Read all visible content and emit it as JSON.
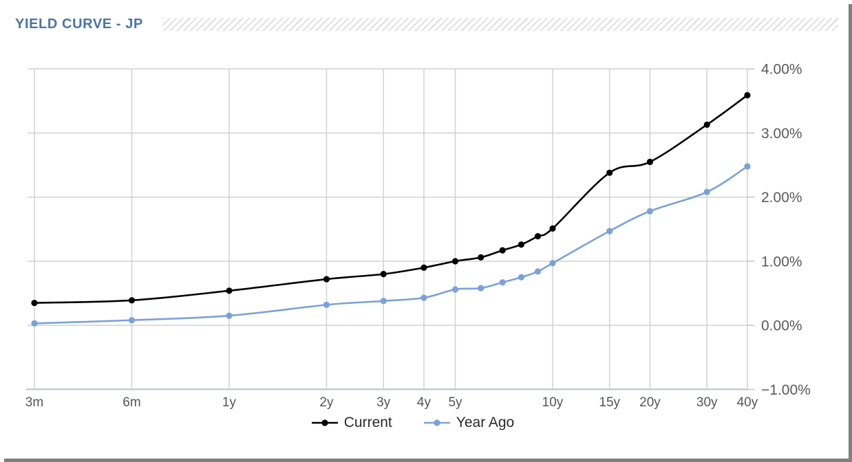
{
  "header": {
    "title": "YIELD CURVE - JP"
  },
  "colors": {
    "title": "#4a74a8",
    "current_series": "#000000",
    "year_ago_series": "#7aa1d8",
    "gridline": "#d2d2d2",
    "axis_line": "#c4cad6",
    "right_tick": "#c2c2c2",
    "x_label": "#555555",
    "y_label": "#595959",
    "legend_text": "#2b2b2b",
    "hatch_stripe": "#e2e2e2",
    "window_shadow": "#808080"
  },
  "chart_data": {
    "type": "line",
    "title": "YIELD CURVE - JP",
    "x_axis": {
      "scale": "log-maturity",
      "tick_labels": [
        "3m",
        "6m",
        "1y",
        "2y",
        "3y",
        "4y",
        "5y",
        "10y",
        "15y",
        "20y",
        "30y",
        "40y"
      ],
      "tick_months": [
        3,
        6,
        12,
        24,
        36,
        48,
        60,
        120,
        180,
        240,
        360,
        480
      ]
    },
    "y_axis": {
      "min": -1,
      "max": 4,
      "tick_values": [
        4,
        3,
        2,
        1,
        0,
        -1
      ],
      "tick_labels": [
        "4.00%",
        "3.00%",
        "2.00%",
        "1.00%",
        "0.00%",
        "−1.00%"
      ],
      "format": "percent",
      "side": "right",
      "grid": true
    },
    "maturities_months": [
      3,
      6,
      12,
      24,
      36,
      48,
      60,
      72,
      84,
      96,
      108,
      120,
      180,
      240,
      360,
      480
    ],
    "maturity_labels": [
      "3m",
      "6m",
      "1y",
      "2y",
      "3y",
      "4y",
      "5y",
      "6y",
      "7y",
      "8y",
      "9y",
      "10y",
      "15y",
      "20y",
      "30y",
      "40y"
    ],
    "series": [
      {
        "name": "Current",
        "color": "#000000",
        "values": [
          0.35,
          0.39,
          0.54,
          0.72,
          0.8,
          0.9,
          1.0,
          1.06,
          1.17,
          1.26,
          1.39,
          1.51,
          2.38,
          2.55,
          3.13,
          3.59
        ]
      },
      {
        "name": "Year Ago",
        "color": "#7aa1d8",
        "values": [
          0.03,
          0.08,
          0.15,
          0.32,
          0.38,
          0.43,
          0.56,
          0.58,
          0.67,
          0.75,
          0.84,
          0.97,
          1.47,
          1.78,
          2.08,
          2.48
        ]
      }
    ],
    "legend_position": "bottom",
    "line_style": "smooth",
    "markers": "filled-circle"
  }
}
